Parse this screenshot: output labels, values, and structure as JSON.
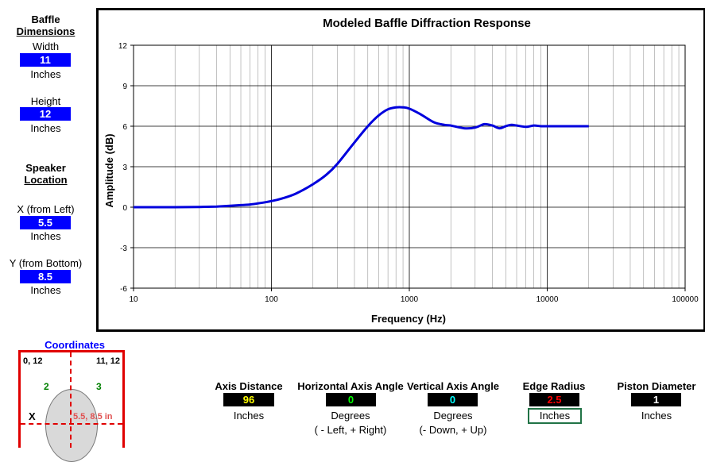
{
  "baffle": {
    "title1": "Baffle",
    "title2": "Dimensions",
    "width_label": "Width",
    "width_value": "11",
    "width_unit": "Inches",
    "height_label": "Height",
    "height_value": "12",
    "height_unit": "Inches"
  },
  "speaker": {
    "title1": "Speaker",
    "title2": "Location",
    "x_label": "X (from Left)",
    "x_value": "5.5",
    "x_unit": "Inches",
    "y_label": "Y (from Bottom)",
    "y_value": "8.5",
    "y_unit": "Inches"
  },
  "coordinates": {
    "title": "Coordinates",
    "top_left": "0, 12",
    "top_right": "11, 12",
    "quad_left": "2",
    "quad_right": "3",
    "x_axis_label": "X",
    "speaker_point": "5.5, 8.5 in"
  },
  "params": {
    "axis_distance": {
      "label": "Axis Distance",
      "value": "96",
      "unit": "Inches",
      "note": "",
      "color": "#ffff00"
    },
    "horizontal_angle": {
      "label": "Horizontal Axis Angle",
      "value": "0",
      "unit": "Degrees",
      "note": "( - Left, + Right)",
      "color": "#00ff00"
    },
    "vertical_angle": {
      "label": "Vertical Axis Angle",
      "value": "0",
      "unit": "Degrees",
      "note": "(- Down, + Up)",
      "color": "#00ffff"
    },
    "edge_radius": {
      "label": "Edge Radius",
      "value": "2.5",
      "unit": "Inches",
      "note": "",
      "color": "#ff0000"
    },
    "piston_diameter": {
      "label": "Piston Diameter",
      "value": "1",
      "unit": "Inches",
      "note": "",
      "color": "#ffffff"
    }
  },
  "chart_data": {
    "type": "line",
    "title": "Modeled Baffle Diffraction Response",
    "xlabel": "Frequency (Hz)",
    "ylabel": "Amplitude (dB)",
    "x_scale": "log",
    "xlim": [
      10,
      100000
    ],
    "ylim": [
      -6,
      12
    ],
    "x_ticks": [
      "10",
      "100",
      "1000",
      "10000",
      "100000"
    ],
    "y_ticks": [
      "-6",
      "-3",
      "0",
      "3",
      "6",
      "9",
      "12"
    ],
    "grid": true,
    "line_color": "#0000dd",
    "series": [
      {
        "x": [
          10,
          20,
          30,
          40,
          50,
          60,
          70,
          80,
          100,
          120,
          150,
          200,
          250,
          300,
          400,
          500,
          600,
          700,
          800,
          900,
          1000,
          1200,
          1500,
          1800,
          2000,
          2500,
          3000,
          3500,
          4000,
          4500,
          5000,
          5500,
          6000,
          7000,
          8000,
          9000,
          10000,
          12000,
          15000,
          20000
        ],
        "values": [
          0,
          0,
          0.02,
          0.05,
          0.1,
          0.15,
          0.2,
          0.28,
          0.45,
          0.65,
          1.0,
          1.7,
          2.4,
          3.2,
          4.8,
          6.0,
          6.8,
          7.25,
          7.4,
          7.4,
          7.3,
          6.9,
          6.3,
          6.1,
          6.05,
          5.85,
          5.9,
          6.15,
          6.05,
          5.85,
          6.0,
          6.1,
          6.05,
          5.95,
          6.05,
          6.0,
          6.0,
          6.0,
          6.0,
          6.0
        ]
      }
    ]
  }
}
